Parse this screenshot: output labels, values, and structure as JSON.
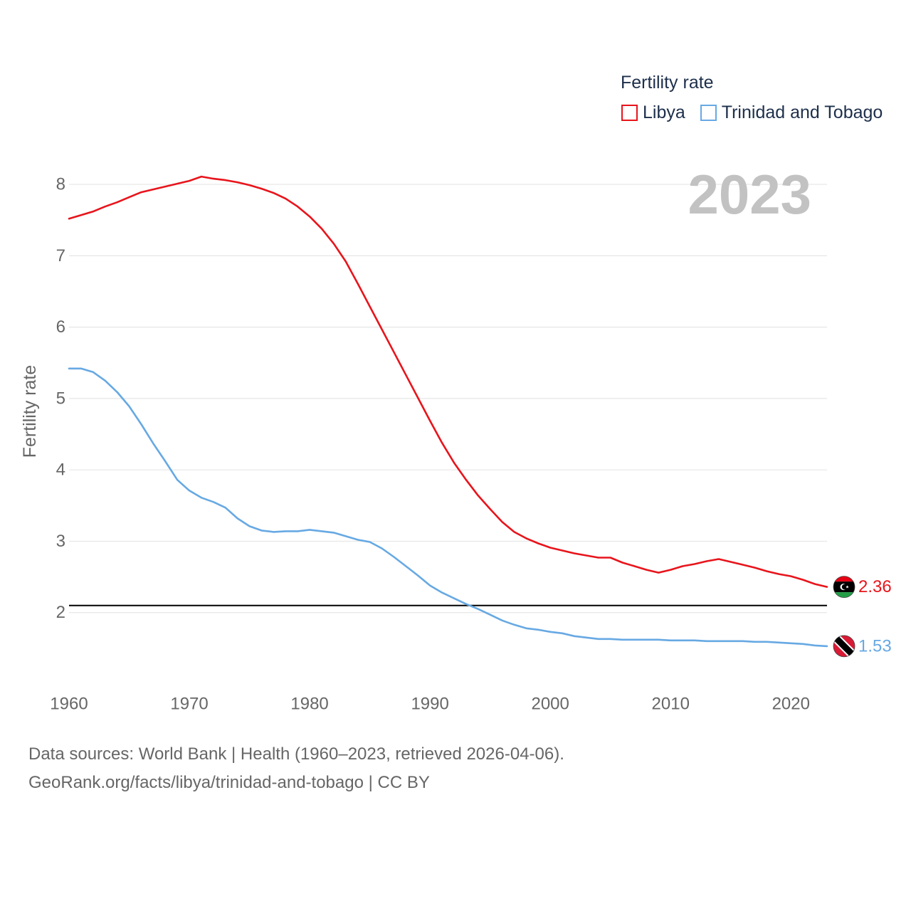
{
  "chart_data": {
    "type": "line",
    "ylabel": "Fertility rate",
    "legend_title": "Fertility rate",
    "legend_position": "top-right",
    "year_label": "2023",
    "grid": true,
    "xlim": [
      1960,
      2023
    ],
    "ylim": [
      1.0,
      8.3
    ],
    "x_ticks": [
      1960,
      1970,
      1980,
      1990,
      2000,
      2010,
      2020
    ],
    "y_ticks": [
      2,
      3,
      4,
      5,
      6,
      7,
      8
    ],
    "reference_line": {
      "y": 2.1,
      "color": "#000000"
    },
    "x": [
      1960,
      1961,
      1962,
      1963,
      1964,
      1965,
      1966,
      1967,
      1968,
      1969,
      1970,
      1971,
      1972,
      1973,
      1974,
      1975,
      1976,
      1977,
      1978,
      1979,
      1980,
      1981,
      1982,
      1983,
      1984,
      1985,
      1986,
      1987,
      1988,
      1989,
      1990,
      1991,
      1992,
      1993,
      1994,
      1995,
      1996,
      1997,
      1998,
      1999,
      2000,
      2001,
      2002,
      2003,
      2004,
      2005,
      2006,
      2007,
      2008,
      2009,
      2010,
      2011,
      2012,
      2013,
      2014,
      2015,
      2016,
      2017,
      2018,
      2019,
      2020,
      2021,
      2022,
      2023
    ],
    "series": [
      {
        "name": "Libya",
        "color": "#e8141b",
        "icon": "libya-flag-icon",
        "end_label": "2.36",
        "values": [
          7.52,
          7.57,
          7.62,
          7.69,
          7.75,
          7.82,
          7.89,
          7.93,
          7.97,
          8.01,
          8.05,
          8.11,
          8.08,
          8.06,
          8.03,
          7.99,
          7.94,
          7.88,
          7.8,
          7.69,
          7.55,
          7.38,
          7.17,
          6.92,
          6.61,
          6.29,
          5.97,
          5.65,
          5.33,
          5.01,
          4.69,
          4.38,
          4.1,
          3.86,
          3.64,
          3.45,
          3.27,
          3.13,
          3.04,
          2.97,
          2.91,
          2.87,
          2.83,
          2.8,
          2.77,
          2.77,
          2.7,
          2.65,
          2.6,
          2.56,
          2.6,
          2.65,
          2.68,
          2.72,
          2.75,
          2.71,
          2.67,
          2.63,
          2.58,
          2.54,
          2.51,
          2.46,
          2.4,
          2.36
        ]
      },
      {
        "name": "Trinidad and Tobago",
        "color": "#67a9e3",
        "icon": "trinidad-and-tobago-flag-icon",
        "end_label": "1.53",
        "values": [
          5.42,
          5.42,
          5.37,
          5.25,
          5.09,
          4.89,
          4.64,
          4.37,
          4.12,
          3.86,
          3.71,
          3.61,
          3.55,
          3.47,
          3.32,
          3.21,
          3.15,
          3.13,
          3.14,
          3.14,
          3.16,
          3.14,
          3.12,
          3.07,
          3.02,
          2.99,
          2.9,
          2.78,
          2.65,
          2.52,
          2.38,
          2.28,
          2.2,
          2.12,
          2.05,
          1.97,
          1.89,
          1.83,
          1.78,
          1.76,
          1.73,
          1.71,
          1.67,
          1.65,
          1.63,
          1.63,
          1.62,
          1.62,
          1.62,
          1.62,
          1.61,
          1.61,
          1.61,
          1.6,
          1.6,
          1.6,
          1.6,
          1.59,
          1.59,
          1.58,
          1.57,
          1.56,
          1.54,
          1.53
        ]
      }
    ]
  },
  "footer": {
    "source": "Data sources: World Bank | Health (1960–2023, retrieved 2026-04-06).",
    "attribution": "GeoRank.org/facts/libya/trinidad-and-tobago | CC BY"
  }
}
